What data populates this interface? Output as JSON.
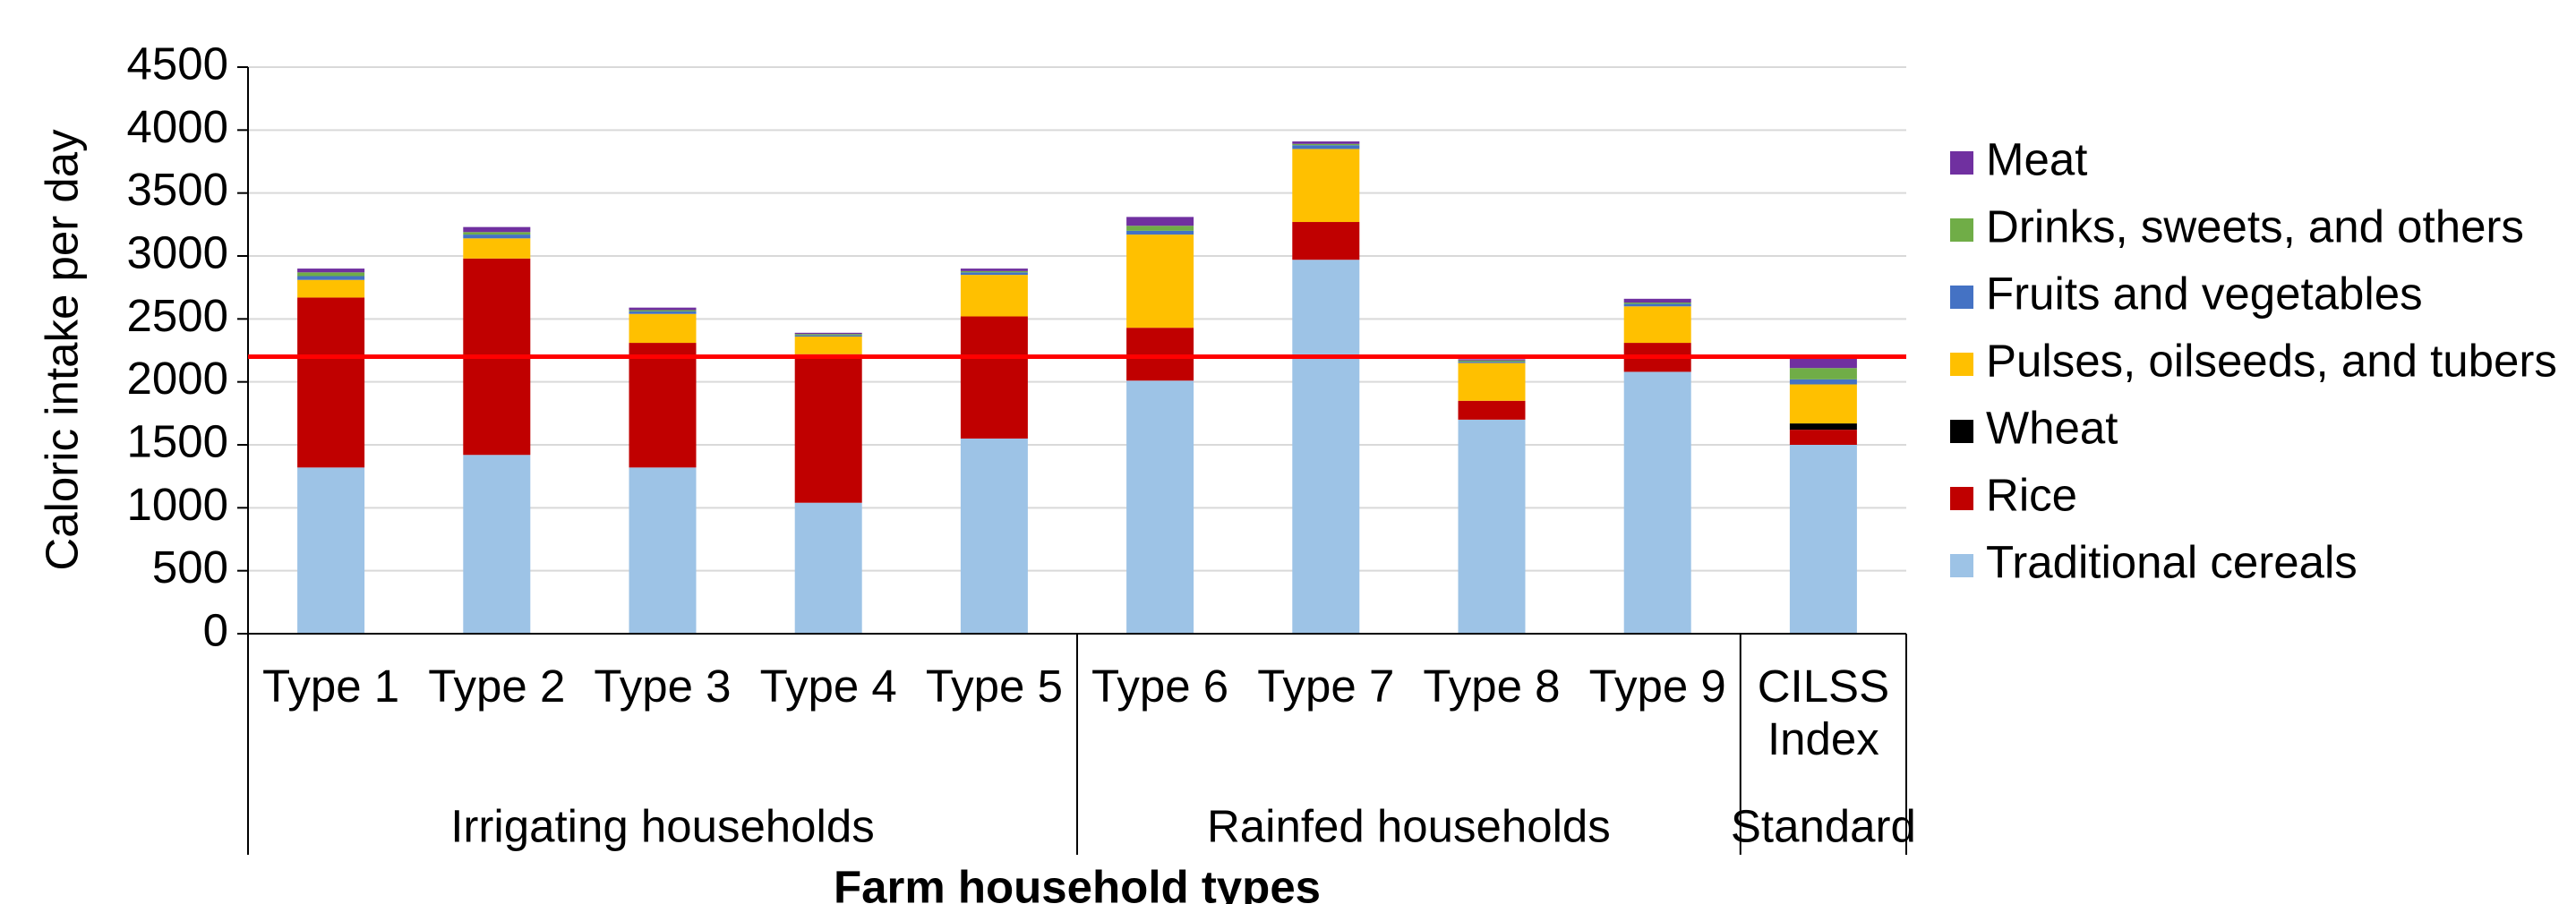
{
  "chart_data": {
    "type": "stacked_bar",
    "y_label": "Caloric intake per day",
    "x_label": "Farm household types",
    "categories": [
      "Type 1",
      "Type 2",
      "Type 3",
      "Type 4",
      "Type 5",
      "Type 6",
      "Type 7",
      "Type 8",
      "Type 9",
      "CILSS Index"
    ],
    "groups": [
      {
        "name": "Irrigating households",
        "categories": 5
      },
      {
        "name": "Rainfed households",
        "categories": 4
      },
      {
        "name": "Standard",
        "categories": 1
      }
    ],
    "series": [
      {
        "name": "Traditional cereals",
        "color": "#9dc3e6",
        "values": [
          1320,
          1420,
          1320,
          1040,
          1550,
          2010,
          2970,
          1700,
          2080,
          1500
        ]
      },
      {
        "name": "Rice",
        "color": "#c00000",
        "values": [
          1350,
          1560,
          990,
          1180,
          970,
          420,
          300,
          150,
          230,
          120
        ]
      },
      {
        "name": "Wheat",
        "color": "#000000",
        "values": [
          0,
          0,
          0,
          0,
          0,
          0,
          0,
          0,
          0,
          50
        ]
      },
      {
        "name": "Pulses, oilseeds, and tubers",
        "color": "#ffc000",
        "values": [
          140,
          160,
          230,
          140,
          330,
          740,
          580,
          300,
          290,
          310
        ]
      },
      {
        "name": "Fruits and vegetables",
        "color": "#4472c4",
        "values": [
          30,
          30,
          20,
          10,
          20,
          30,
          30,
          10,
          20,
          40
        ]
      },
      {
        "name": "Drinks, sweets, and others",
        "color": "#70ad47",
        "values": [
          30,
          20,
          10,
          10,
          10,
          40,
          10,
          10,
          10,
          90
        ]
      },
      {
        "name": "Meat",
        "color": "#7030a0",
        "values": [
          30,
          40,
          20,
          10,
          20,
          70,
          20,
          10,
          30,
          100
        ]
      }
    ],
    "reference_line": {
      "value": 2200,
      "color": "#ff0000"
    },
    "ylim": [
      0,
      4500
    ],
    "yticks": [
      0,
      500,
      1000,
      1500,
      2000,
      2500,
      3000,
      3500,
      4000,
      4500
    ],
    "grid": true,
    "legend": "right"
  }
}
